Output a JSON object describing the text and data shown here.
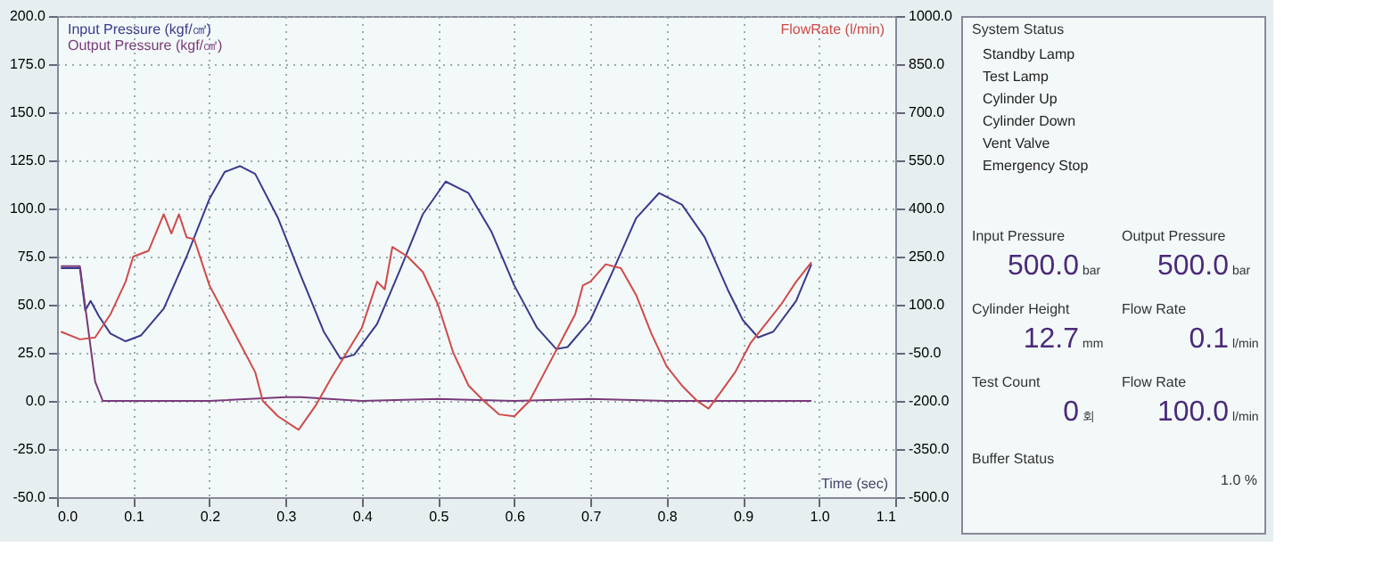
{
  "chart_data": [
    {
      "type": "line",
      "xlabel": "Time (sec)",
      "xlim": [
        0,
        1.1
      ],
      "xticks": [
        {
          "value": 0,
          "label": "0.0"
        },
        {
          "value": 0.1,
          "label": "0.1"
        },
        {
          "value": 0.2,
          "label": "0.2"
        },
        {
          "value": 0.3,
          "label": "0.3"
        },
        {
          "value": 0.4,
          "label": "0.4"
        },
        {
          "value": 0.5,
          "label": "0.5"
        },
        {
          "value": 0.6,
          "label": "0.6"
        },
        {
          "value": 0.7,
          "label": "0.7"
        },
        {
          "value": 0.8,
          "label": "0.8"
        },
        {
          "value": 0.9,
          "label": "0.9"
        },
        {
          "value": 1.0,
          "label": "1.0"
        },
        {
          "value": 1.1,
          "label": "1.1"
        }
      ],
      "ylim": [
        -50,
        200
      ],
      "yticks": [
        {
          "value": -50,
          "label": "-50.0"
        },
        {
          "value": -25,
          "label": "-25.0"
        },
        {
          "value": 0,
          "label": "0.0"
        },
        {
          "value": 25,
          "label": "25.0"
        },
        {
          "value": 50,
          "label": "50.0"
        },
        {
          "value": 75,
          "label": "75.0"
        },
        {
          "value": 100,
          "label": "100.0"
        },
        {
          "value": 125,
          "label": "125.0"
        },
        {
          "value": 150,
          "label": "150.0"
        },
        {
          "value": 175,
          "label": "175.0"
        },
        {
          "value": 200,
          "label": "200.0"
        }
      ],
      "y2lim": [
        -500,
        1000
      ],
      "y2ticks": [
        {
          "value": -500,
          "label": "-500.0"
        },
        {
          "value": -350,
          "label": "-350.0"
        },
        {
          "value": -200,
          "label": "-200.0"
        },
        {
          "value": -50,
          "label": "-50.0"
        },
        {
          "value": 100,
          "label": "100.0"
        },
        {
          "value": 250,
          "label": "250.0"
        },
        {
          "value": 400,
          "label": "400.0"
        },
        {
          "value": 550,
          "label": "550.0"
        },
        {
          "value": 700,
          "label": "700.0"
        },
        {
          "value": 850,
          "label": "850.0"
        },
        {
          "value": 1000,
          "label": "1000.0"
        }
      ],
      "grid": true,
      "line_style": "solid",
      "series": [
        {
          "name": "Input Pressure (kgf/㎠)",
          "color": "#3a3a8c",
          "x": [
            0.005,
            0.03,
            0.037,
            0.044,
            0.055,
            0.07,
            0.09,
            0.11,
            0.14,
            0.17,
            0.2,
            0.22,
            0.24,
            0.26,
            0.29,
            0.32,
            0.35,
            0.372,
            0.39,
            0.42,
            0.45,
            0.48,
            0.51,
            0.54,
            0.57,
            0.6,
            0.63,
            0.655,
            0.67,
            0.7,
            0.73,
            0.76,
            0.79,
            0.82,
            0.85,
            0.88,
            0.9,
            0.92,
            0.94,
            0.97,
            0.99
          ],
          "values": [
            69,
            69,
            47,
            52,
            44,
            35,
            31,
            34,
            48,
            75,
            105,
            119,
            122,
            118,
            95,
            65,
            36,
            22,
            24,
            40,
            68,
            97,
            114,
            108,
            88,
            60,
            38,
            27,
            28,
            42,
            68,
            95,
            108,
            102,
            85,
            58,
            42,
            33,
            36,
            52,
            71
          ]
        },
        {
          "name": "Output Pressure (kgf/㎠)",
          "color": "#7a3a7a",
          "x": [
            0.005,
            0.03,
            0.04,
            0.05,
            0.06,
            0.1,
            0.2,
            0.3,
            0.32,
            0.4,
            0.5,
            0.6,
            0.7,
            0.8,
            0.9,
            0.99
          ],
          "values": [
            70,
            70,
            40,
            10,
            0,
            0,
            0,
            2,
            2,
            0,
            1,
            0,
            1,
            0,
            0,
            0
          ]
        },
        {
          "name": "FlowRate (l/min)",
          "color": "#d04a4a",
          "axis": "y2",
          "x": [
            0.005,
            0.03,
            0.05,
            0.07,
            0.09,
            0.1,
            0.12,
            0.14,
            0.15,
            0.16,
            0.17,
            0.18,
            0.2,
            0.22,
            0.24,
            0.26,
            0.27,
            0.29,
            0.317,
            0.34,
            0.36,
            0.38,
            0.4,
            0.42,
            0.43,
            0.44,
            0.46,
            0.48,
            0.5,
            0.52,
            0.54,
            0.56,
            0.58,
            0.6,
            0.62,
            0.64,
            0.66,
            0.68,
            0.69,
            0.7,
            0.72,
            0.74,
            0.76,
            0.78,
            0.8,
            0.82,
            0.84,
            0.855,
            0.87,
            0.89,
            0.91,
            0.93,
            0.95,
            0.97,
            0.99
          ],
          "values": [
            16,
            -8,
            -2,
            70,
            172,
            250,
            268,
            382,
            322,
            382,
            310,
            304,
            160,
            70,
            -20,
            -110,
            -200,
            -248,
            -290,
            -212,
            -128,
            -50,
            28,
            172,
            148,
            280,
            250,
            202,
            100,
            -50,
            -152,
            -200,
            -242,
            -248,
            -200,
            -110,
            -20,
            70,
            160,
            172,
            226,
            214,
            130,
            10,
            -92,
            -152,
            -200,
            -224,
            -176,
            -110,
            -20,
            40,
            100,
            172,
            232
          ]
        }
      ]
    },
    {
      "type": "other",
      "title": "System Status",
      "annotations": [
        "Standby Lamp",
        "Test Lamp",
        "Cylinder Up",
        "Cylinder Down",
        "Vent Valve",
        "Emergency Stop",
        "Input Pressure",
        "500.0",
        "bar",
        "Output Pressure",
        "500.0",
        "bar",
        "Cylinder Height",
        "12.7",
        "mm",
        "Flow Rate",
        "0.1",
        "l/min",
        "Test Count",
        "0",
        "회",
        "Flow Rate",
        "100.0",
        "l/min",
        "Buffer Status",
        "1.0 %"
      ]
    }
  ]
}
